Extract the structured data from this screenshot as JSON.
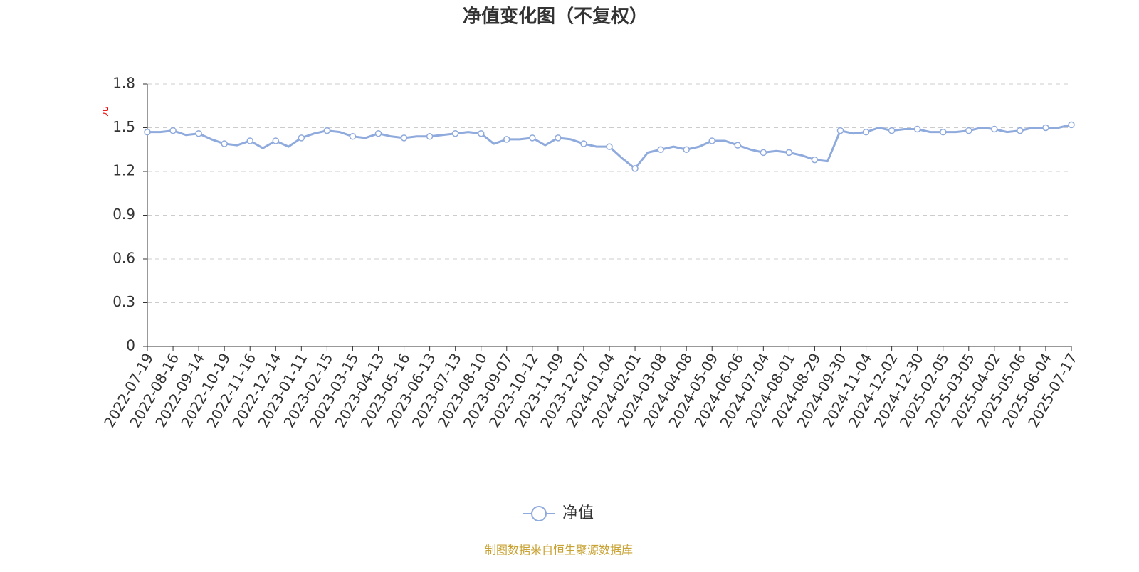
{
  "chart_data": {
    "type": "line",
    "title": "净值变化图（不复权）",
    "y_label": "元",
    "source": "制图数据来自恒生聚源数据库",
    "categories": [
      "2022-07-19",
      null,
      "2022-08-16",
      null,
      "2022-09-14",
      null,
      "2022-10-19",
      null,
      "2022-11-16",
      null,
      "2022-12-14",
      null,
      "2023-01-11",
      null,
      "2023-02-15",
      null,
      "2023-03-15",
      null,
      "2023-04-13",
      null,
      "2023-05-16",
      null,
      "2023-06-13",
      null,
      "2023-07-13",
      null,
      "2023-08-10",
      null,
      "2023-09-07",
      null,
      "2023-10-12",
      null,
      "2023-11-09",
      null,
      "2023-12-07",
      null,
      "2024-01-04",
      null,
      "2024-02-01",
      null,
      "2024-03-08",
      null,
      "2024-04-08",
      null,
      "2024-05-09",
      null,
      "2024-06-06",
      null,
      "2024-07-04",
      null,
      "2024-08-01",
      null,
      "2024-08-29",
      null,
      "2024-09-30",
      null,
      "2024-11-04",
      null,
      "2024-12-02",
      null,
      "2024-12-30",
      null,
      "2025-02-05",
      null,
      "2025-03-05",
      null,
      "2025-04-02",
      null,
      "2025-05-06",
      null,
      "2025-06-04",
      null,
      "2025-07-17"
    ],
    "series": [
      {
        "name": "净值",
        "color": "#8faadc",
        "values": [
          1.47,
          1.47,
          1.48,
          1.45,
          1.46,
          1.42,
          1.39,
          1.38,
          1.41,
          1.36,
          1.41,
          1.37,
          1.43,
          1.46,
          1.48,
          1.47,
          1.44,
          1.43,
          1.46,
          1.44,
          1.43,
          1.44,
          1.44,
          1.45,
          1.46,
          1.47,
          1.46,
          1.39,
          1.42,
          1.42,
          1.43,
          1.38,
          1.43,
          1.42,
          1.39,
          1.37,
          1.37,
          1.29,
          1.22,
          1.33,
          1.35,
          1.37,
          1.35,
          1.37,
          1.41,
          1.41,
          1.38,
          1.35,
          1.33,
          1.34,
          1.33,
          1.31,
          1.28,
          1.27,
          1.48,
          1.46,
          1.47,
          1.5,
          1.48,
          1.49,
          1.49,
          1.47,
          1.47,
          1.47,
          1.48,
          1.5,
          1.49,
          1.47,
          1.48,
          1.5,
          1.5,
          1.5,
          1.52
        ]
      }
    ],
    "ylim": [
      0,
      1.8
    ],
    "yticks": [
      0,
      0.3,
      0.6,
      0.9,
      1.2,
      1.5,
      1.8
    ],
    "grid": true
  }
}
